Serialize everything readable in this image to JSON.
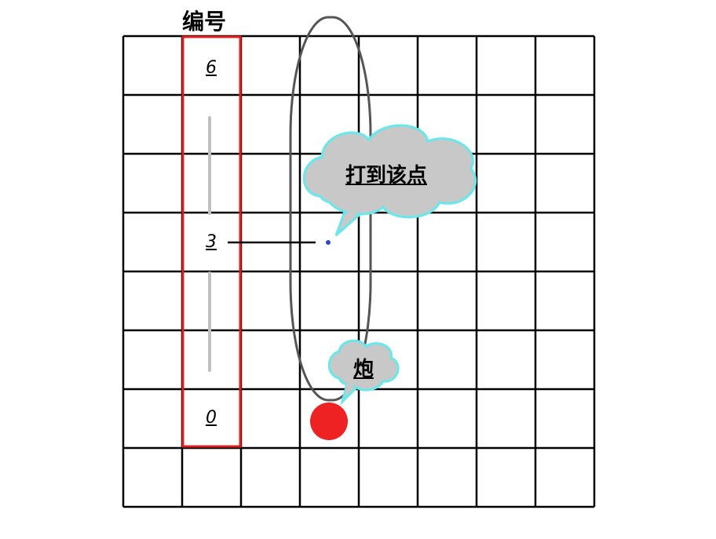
{
  "header_label": "编号",
  "row_numbers": {
    "top": "6",
    "middle": "3",
    "bottom": "0"
  },
  "grid": {
    "columns": 8,
    "rows": 8
  },
  "callouts": {
    "target": "打到该点",
    "cannon": "炮"
  },
  "colors": {
    "grid_line": "#000000",
    "highlight_box": "#e02020",
    "cannon_piece": "#ee2222",
    "cloud_fill": "#c8c8c8",
    "cloud_stroke": "#66e8ec",
    "path_outline": "#555555",
    "target_dot": "#3344cc",
    "guide_bar": "#c0c0c0"
  }
}
